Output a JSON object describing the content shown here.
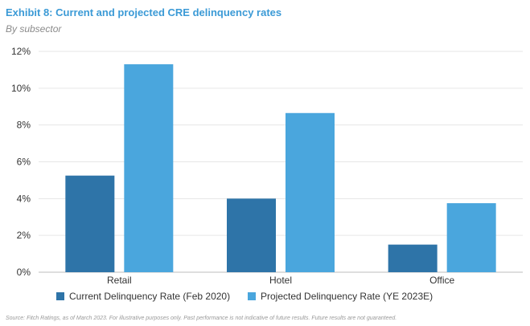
{
  "title": "Exhibit 8: Current and projected CRE delinquency rates",
  "subtitle": "By subsector",
  "source": "Source: Fitch Ratings, as of March 2023. For illustrative purposes only. Past performance is not indicative of future results. Future results are not guaranteed.",
  "colors": {
    "current": "#2e74a8",
    "projected": "#4aa6dd",
    "title": "#3b9ad6",
    "grid": "#e6e6e6"
  },
  "chart_data": {
    "type": "bar",
    "categories": [
      "Retail",
      "Hotel",
      "Office"
    ],
    "series": [
      {
        "name": "Current Delinquency Rate (Feb 2020)",
        "values": [
          5.25,
          4.0,
          1.5
        ]
      },
      {
        "name": "Projected Delinquency Rate (YE 2023E)",
        "values": [
          11.3,
          8.65,
          3.75
        ]
      }
    ],
    "yticks": [
      "0%",
      "2%",
      "4%",
      "6%",
      "8%",
      "10%",
      "12%"
    ],
    "ylim": [
      0,
      12
    ],
    "grid": true,
    "legend_position": "bottom"
  }
}
